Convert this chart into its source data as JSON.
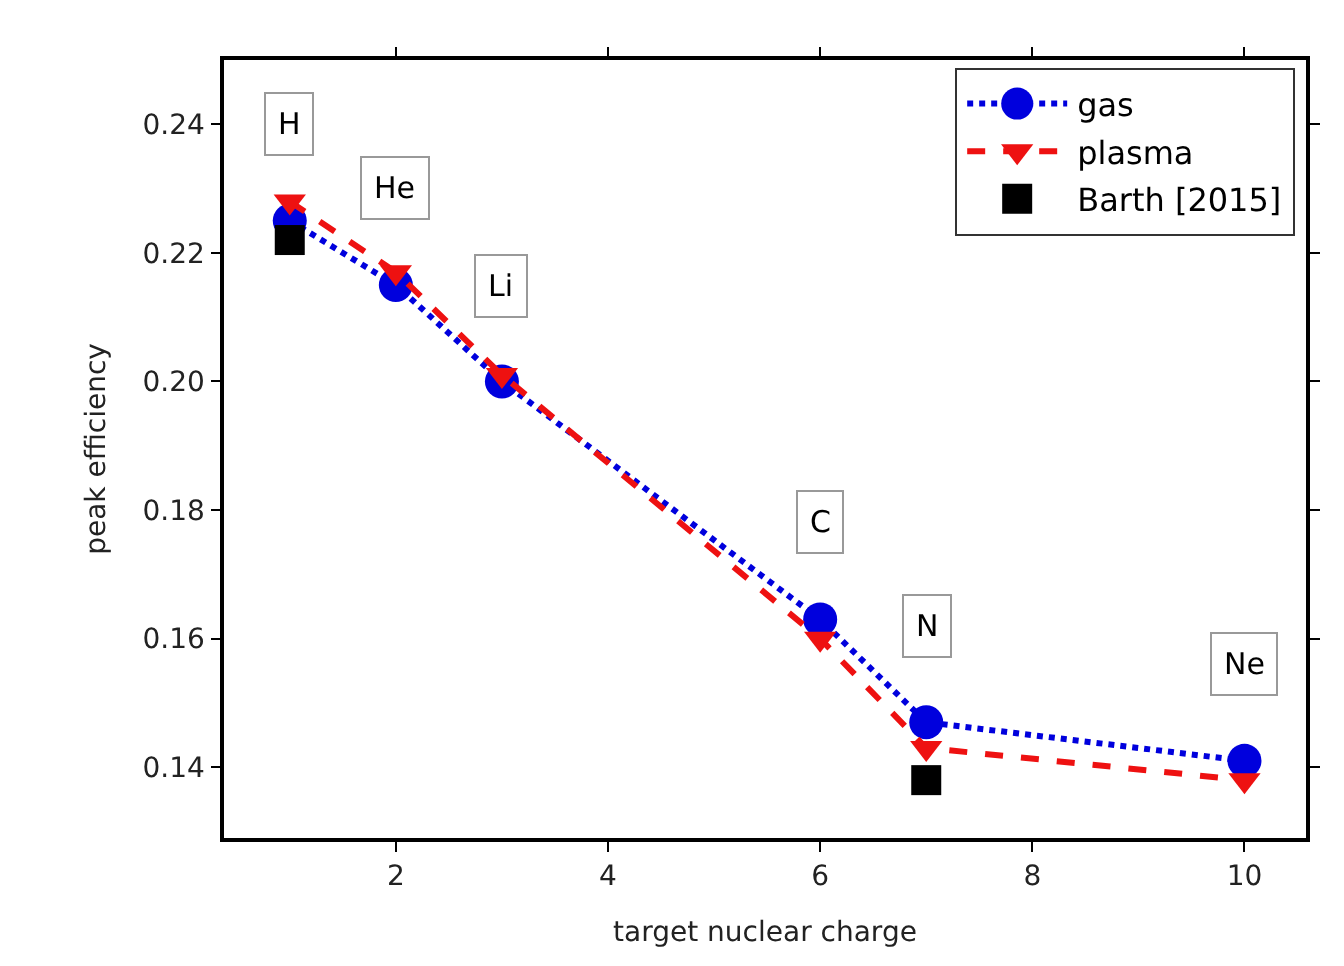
{
  "chart_data": {
    "type": "line",
    "xlabel": "target nuclear charge",
    "ylabel": "peak efficiency",
    "xlim": [
      0.38,
      10.58
    ],
    "xticks": [
      2,
      4,
      6,
      8,
      10
    ],
    "ylim": [
      0.129,
      0.25
    ],
    "yticks": [
      0.14,
      0.16,
      0.18,
      {
        "value": 0.2,
        "label": "0.20"
      },
      0.22,
      0.24
    ],
    "legend": "top right",
    "series": [
      {
        "name": "gas",
        "color": "#0000dd",
        "x": [
          1,
          2,
          3,
          6,
          7,
          10
        ],
        "values": [
          0.225,
          0.215,
          0.2,
          0.163,
          0.147,
          0.141
        ],
        "marker": "circle",
        "line_style": "dotted"
      },
      {
        "name": "plasma",
        "color": "#ee1111",
        "x": [
          1,
          2,
          3,
          6,
          7,
          10
        ],
        "values": [
          0.228,
          0.217,
          0.201,
          0.16,
          0.143,
          0.138
        ],
        "marker": "triangle",
        "line_style": "dashed"
      },
      {
        "name": "Barth [2015]",
        "type": "scatter",
        "color": "#000000",
        "x": [
          1,
          7
        ],
        "values": [
          0.222,
          0.138
        ],
        "marker": "square"
      }
    ],
    "annotations": [
      {
        "text": "H",
        "x": 1,
        "y": 0.24
      },
      {
        "text": "He",
        "x": 2,
        "y": 0.23
      },
      {
        "text": "Li",
        "x": 3,
        "y": 0.2147
      },
      {
        "text": "C",
        "x": 6,
        "y": 0.178
      },
      {
        "text": "N",
        "x": 7,
        "y": 0.162
      },
      {
        "text": "Ne",
        "x": 10,
        "y": 0.156
      }
    ]
  }
}
